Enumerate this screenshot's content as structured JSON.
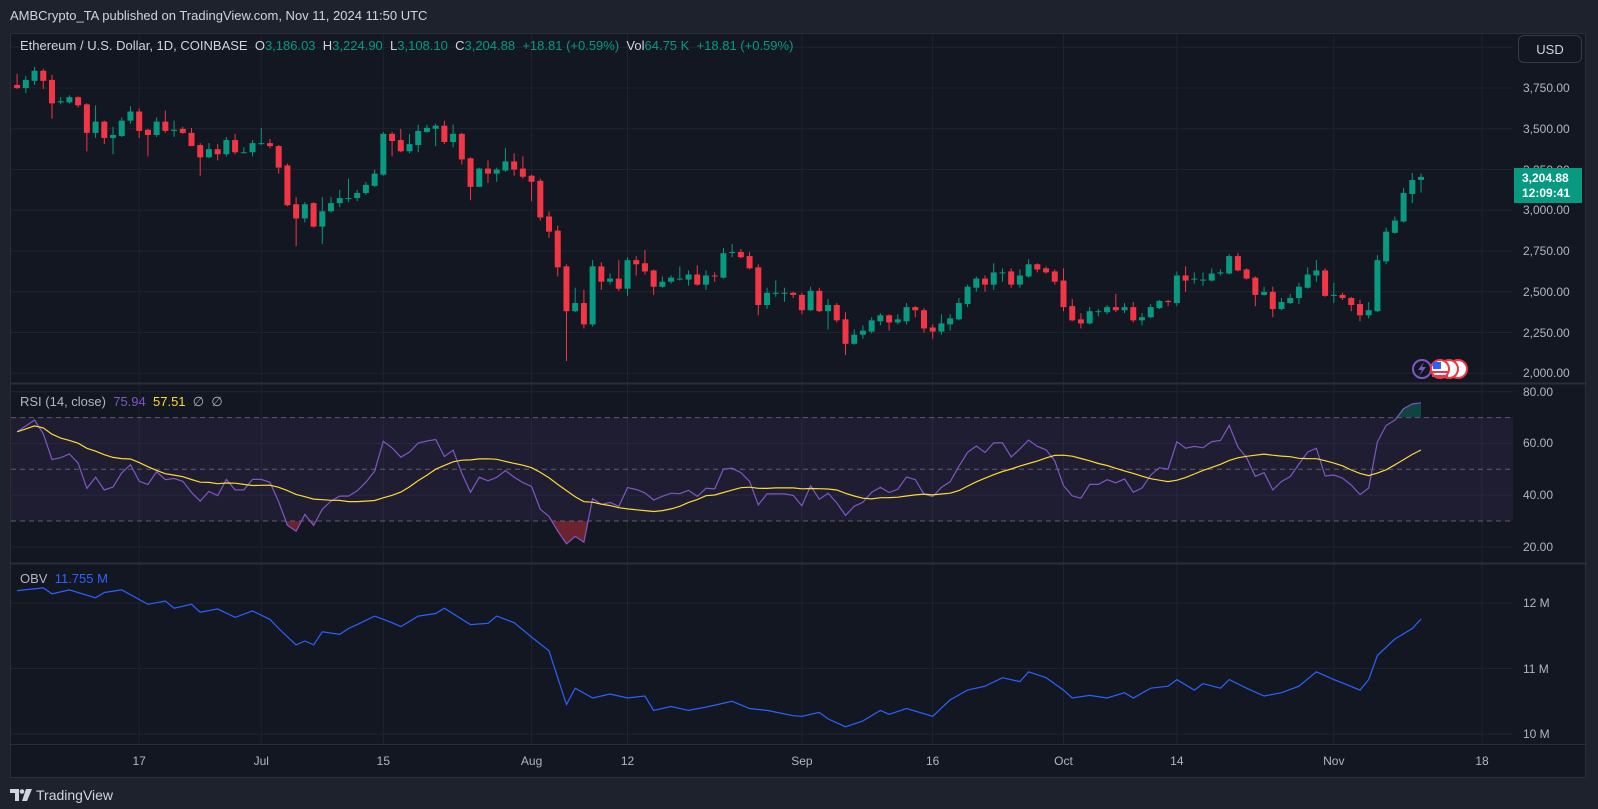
{
  "header": {
    "published": "AMBCrypto_TA published on TradingView.com, Nov 11, 2024 11:50 UTC"
  },
  "legend": {
    "symbol": "Ethereum / U.S. Dollar, 1D, COINBASE",
    "o_label": "O",
    "o": "3,186.03",
    "h_label": "H",
    "h": "3,224.90",
    "l_label": "L",
    "l": "3,108.10",
    "c_label": "C",
    "c": "3,204.88",
    "change": "+18.81 (+0.59%)",
    "vol_label": "Vol",
    "vol": "64.75 K",
    "vol_change": "+18.81 (+0.59%)"
  },
  "price_scale": {
    "currency": "USD",
    "labels": [
      "3,750.00",
      "3,500.00",
      "3,250.00",
      "3,000.00",
      "2,750.00",
      "2,500.00",
      "2,250.00",
      "2,000.00"
    ],
    "last_price": "3,204.88",
    "countdown": "12:09:41"
  },
  "rsi": {
    "title": "RSI (14, close)",
    "value": "75.94",
    "ma_value": "57.51",
    "extra1": "∅",
    "extra2": "∅",
    "labels": [
      "80.00",
      "60.00",
      "40.00",
      "20.00"
    ]
  },
  "obv": {
    "title": "OBV",
    "value": "11.755 M",
    "labels": [
      "12 M",
      "11 M",
      "10 M"
    ]
  },
  "footer": {
    "brand": "TradingView"
  },
  "colors": {
    "up": "#089981",
    "down": "#f23645",
    "rsi": "#7e57c2",
    "rsi_ma": "#fdd835",
    "obv": "#2962ff"
  },
  "chart_data": {
    "type": "candlestick",
    "title": "Ethereum / U.S. Dollar, 1D, COINBASE",
    "first_date": "2024-06-03",
    "last_date": "2024-11-11",
    "ylabel": "USD",
    "ylim": [
      2000,
      4000
    ],
    "x_ticks": [
      {
        "label": "17",
        "day": 14
      },
      {
        "label": "Jul",
        "day": 28
      },
      {
        "label": "15",
        "day": 42
      },
      {
        "label": "Aug",
        "day": 59
      },
      {
        "label": "12",
        "day": 70
      },
      {
        "label": "Sep",
        "day": 90
      },
      {
        "label": "16",
        "day": 105
      },
      {
        "label": "Oct",
        "day": 120
      },
      {
        "label": "14",
        "day": 133
      },
      {
        "label": "Nov",
        "day": 151
      },
      {
        "label": "18",
        "day": 168
      }
    ],
    "y_ticks": [
      2000,
      2250,
      2500,
      2750,
      3000,
      3250,
      3500,
      3750,
      4000
    ],
    "ohlc": [
      [
        3769,
        3838,
        3744,
        3750
      ],
      [
        3750,
        3825,
        3719,
        3800
      ],
      [
        3794,
        3881,
        3769,
        3856
      ],
      [
        3856,
        3869,
        3744,
        3794
      ],
      [
        3800,
        3831,
        3562,
        3656
      ],
      [
        3662,
        3694,
        3650,
        3669
      ],
      [
        3662,
        3706,
        3656,
        3694
      ],
      [
        3694,
        3700,
        3631,
        3644
      ],
      [
        3650,
        3656,
        3362,
        3475
      ],
      [
        3475,
        3644,
        3444,
        3544
      ],
      [
        3544,
        3550,
        3406,
        3444
      ],
      [
        3444,
        3512,
        3344,
        3462
      ],
      [
        3456,
        3569,
        3450,
        3550
      ],
      [
        3550,
        3637,
        3531,
        3606
      ],
      [
        3606,
        3625,
        3444,
        3487
      ],
      [
        3494,
        3500,
        3331,
        3462
      ],
      [
        3462,
        3569,
        3450,
        3544
      ],
      [
        3544,
        3612,
        3475,
        3487
      ],
      [
        3487,
        3550,
        3450,
        3494
      ],
      [
        3500,
        3512,
        3469,
        3475
      ],
      [
        3475,
        3506,
        3394,
        3394
      ],
      [
        3400,
        3412,
        3212,
        3325
      ],
      [
        3325,
        3412,
        3319,
        3375
      ],
      [
        3375,
        3406,
        3306,
        3344
      ],
      [
        3344,
        3450,
        3331,
        3431
      ],
      [
        3431,
        3469,
        3344,
        3356
      ],
      [
        3356,
        3387,
        3350,
        3356
      ],
      [
        3356,
        3431,
        3331,
        3412
      ],
      [
        3406,
        3506,
        3400,
        3412
      ],
      [
        3412,
        3437,
        3381,
        3394
      ],
      [
        3394,
        3400,
        3225,
        3262
      ],
      [
        3275,
        3287,
        3025,
        3031
      ],
      [
        3037,
        3081,
        2781,
        2950
      ],
      [
        2950,
        3050,
        2925,
        3037
      ],
      [
        3044,
        3050,
        2894,
        2900
      ],
      [
        2900,
        3081,
        2794,
        2994
      ],
      [
        2994,
        3081,
        2987,
        3044
      ],
      [
        3044,
        3125,
        3019,
        3075
      ],
      [
        3075,
        3194,
        3050,
        3075
      ],
      [
        3075,
        3125,
        3056,
        3106
      ],
      [
        3106,
        3175,
        3094,
        3156
      ],
      [
        3150,
        3250,
        3144,
        3225
      ],
      [
        3219,
        3481,
        3212,
        3469
      ],
      [
        3469,
        3481,
        3331,
        3425
      ],
      [
        3431,
        3500,
        3356,
        3362
      ],
      [
        3362,
        3469,
        3350,
        3406
      ],
      [
        3400,
        3525,
        3356,
        3487
      ],
      [
        3481,
        3525,
        3475,
        3506
      ],
      [
        3500,
        3531,
        3394,
        3519
      ],
      [
        3519,
        3550,
        3406,
        3419
      ],
      [
        3419,
        3525,
        3387,
        3469
      ],
      [
        3469,
        3475,
        3281,
        3312
      ],
      [
        3319,
        3325,
        3062,
        3144
      ],
      [
        3144,
        3262,
        3144,
        3256
      ],
      [
        3256,
        3306,
        3169,
        3225
      ],
      [
        3225,
        3262,
        3175,
        3250
      ],
      [
        3244,
        3381,
        3237,
        3300
      ],
      [
        3300,
        3350,
        3212,
        3250
      ],
      [
        3256,
        3331,
        3194,
        3206
      ],
      [
        3212,
        3219,
        3056,
        3175
      ],
      [
        3181,
        3194,
        2937,
        2956
      ],
      [
        2962,
        2994,
        2831,
        2869
      ],
      [
        2875,
        2906,
        2594,
        2650
      ],
      [
        2656,
        2669,
        2075,
        2381
      ],
      [
        2381,
        2525,
        2375,
        2431
      ],
      [
        2431,
        2512,
        2275,
        2300
      ],
      [
        2300,
        2694,
        2287,
        2656
      ],
      [
        2656,
        2681,
        2512,
        2562
      ],
      [
        2562,
        2612,
        2544,
        2581
      ],
      [
        2581,
        2694,
        2506,
        2519
      ],
      [
        2519,
        2712,
        2475,
        2694
      ],
      [
        2694,
        2719,
        2600,
        2669
      ],
      [
        2675,
        2756,
        2606,
        2625
      ],
      [
        2631,
        2637,
        2481,
        2531
      ],
      [
        2531,
        2594,
        2525,
        2562
      ],
      [
        2562,
        2600,
        2550,
        2587
      ],
      [
        2581,
        2656,
        2569,
        2581
      ],
      [
        2575,
        2631,
        2537,
        2606
      ],
      [
        2606,
        2662,
        2537,
        2544
      ],
      [
        2544,
        2631,
        2512,
        2600
      ],
      [
        2600,
        2619,
        2562,
        2594
      ],
      [
        2587,
        2769,
        2581,
        2737
      ],
      [
        2744,
        2794,
        2712,
        2744
      ],
      [
        2744,
        2762,
        2706,
        2712
      ],
      [
        2719,
        2744,
        2637,
        2644
      ],
      [
        2650,
        2669,
        2356,
        2419
      ],
      [
        2419,
        2525,
        2394,
        2494
      ],
      [
        2494,
        2569,
        2469,
        2494
      ],
      [
        2494,
        2525,
        2438,
        2494
      ],
      [
        2494,
        2500,
        2462,
        2481
      ],
      [
        2481,
        2494,
        2362,
        2387
      ],
      [
        2387,
        2531,
        2381,
        2506
      ],
      [
        2506,
        2525,
        2375,
        2381
      ],
      [
        2381,
        2456,
        2269,
        2419
      ],
      [
        2419,
        2431,
        2312,
        2325
      ],
      [
        2331,
        2375,
        2112,
        2181
      ],
      [
        2181,
        2269,
        2175,
        2237
      ],
      [
        2237,
        2294,
        2212,
        2262
      ],
      [
        2256,
        2344,
        2244,
        2325
      ],
      [
        2319,
        2369,
        2294,
        2356
      ],
      [
        2356,
        2362,
        2262,
        2312
      ],
      [
        2312,
        2362,
        2300,
        2331
      ],
      [
        2319,
        2431,
        2300,
        2406
      ],
      [
        2406,
        2412,
        2344,
        2387
      ],
      [
        2387,
        2400,
        2250,
        2275
      ],
      [
        2281,
        2300,
        2212,
        2256
      ],
      [
        2256,
        2362,
        2237,
        2306
      ],
      [
        2300,
        2362,
        2262,
        2337
      ],
      [
        2331,
        2462,
        2325,
        2431
      ],
      [
        2425,
        2544,
        2406,
        2531
      ],
      [
        2525,
        2594,
        2500,
        2581
      ],
      [
        2581,
        2600,
        2500,
        2544
      ],
      [
        2544,
        2675,
        2512,
        2619
      ],
      [
        2619,
        2644,
        2562,
        2619
      ],
      [
        2625,
        2644,
        2525,
        2544
      ],
      [
        2544,
        2637,
        2525,
        2600
      ],
      [
        2594,
        2700,
        2587,
        2669
      ],
      [
        2669,
        2675,
        2619,
        2637
      ],
      [
        2644,
        2656,
        2612,
        2619
      ],
      [
        2625,
        2637,
        2544,
        2562
      ],
      [
        2569,
        2644,
        2381,
        2406
      ],
      [
        2412,
        2456,
        2319,
        2325
      ],
      [
        2331,
        2369,
        2275,
        2306
      ],
      [
        2306,
        2406,
        2300,
        2381
      ],
      [
        2381,
        2394,
        2350,
        2381
      ],
      [
        2375,
        2419,
        2362,
        2406
      ],
      [
        2406,
        2487,
        2375,
        2387
      ],
      [
        2387,
        2431,
        2369,
        2406
      ],
      [
        2406,
        2437,
        2312,
        2325
      ],
      [
        2325,
        2369,
        2294,
        2344
      ],
      [
        2344,
        2425,
        2337,
        2406
      ],
      [
        2400,
        2450,
        2394,
        2444
      ],
      [
        2444,
        2450,
        2412,
        2437
      ],
      [
        2431,
        2625,
        2412,
        2600
      ],
      [
        2600,
        2656,
        2500,
        2569
      ],
      [
        2581,
        2619,
        2550,
        2581
      ],
      [
        2575,
        2619,
        2537,
        2575
      ],
      [
        2569,
        2644,
        2562,
        2612
      ],
      [
        2612,
        2637,
        2600,
        2619
      ],
      [
        2612,
        2731,
        2606,
        2719
      ],
      [
        2719,
        2737,
        2625,
        2631
      ],
      [
        2637,
        2644,
        2575,
        2581
      ],
      [
        2587,
        2594,
        2412,
        2481
      ],
      [
        2481,
        2531,
        2475,
        2500
      ],
      [
        2500,
        2531,
        2344,
        2394
      ],
      [
        2394,
        2462,
        2387,
        2437
      ],
      [
        2431,
        2487,
        2425,
        2462
      ],
      [
        2462,
        2556,
        2425,
        2531
      ],
      [
        2525,
        2650,
        2519,
        2606
      ],
      [
        2600,
        2694,
        2562,
        2631
      ],
      [
        2631,
        2644,
        2469,
        2475
      ],
      [
        2481,
        2556,
        2431,
        2481
      ],
      [
        2481,
        2494,
        2450,
        2462
      ],
      [
        2462,
        2469,
        2381,
        2419
      ],
      [
        2425,
        2450,
        2319,
        2356
      ],
      [
        2356,
        2437,
        2337,
        2387
      ],
      [
        2381,
        2725,
        2375,
        2694
      ],
      [
        2687,
        2894,
        2669,
        2869
      ],
      [
        2862,
        2962,
        2856,
        2937
      ],
      [
        2931,
        3137,
        2925,
        3106
      ],
      [
        3100,
        3229,
        3044,
        3186
      ],
      [
        3186.03,
        3224.9,
        3108.1,
        3204.88
      ]
    ],
    "rsi": {
      "period": 14,
      "ma_period": 14,
      "ylim": [
        20,
        80
      ],
      "bands": [
        30,
        50,
        70
      ]
    },
    "obv_millions": [
      [
        0,
        12.19
      ],
      [
        3,
        12.23
      ],
      [
        4,
        12.14
      ],
      [
        6,
        12.2
      ],
      [
        9,
        12.08
      ],
      [
        10,
        12.16
      ],
      [
        12,
        12.2
      ],
      [
        15,
        11.98
      ],
      [
        17,
        12.03
      ],
      [
        18,
        11.92
      ],
      [
        20,
        11.98
      ],
      [
        21,
        11.86
      ],
      [
        23,
        11.91
      ],
      [
        25,
        11.78
      ],
      [
        27,
        11.88
      ],
      [
        29,
        11.75
      ],
      [
        30,
        11.61
      ],
      [
        32,
        11.36
      ],
      [
        33,
        11.42
      ],
      [
        34,
        11.36
      ],
      [
        35,
        11.56
      ],
      [
        37,
        11.52
      ],
      [
        38,
        11.61
      ],
      [
        39,
        11.67
      ],
      [
        41,
        11.8
      ],
      [
        43,
        11.7
      ],
      [
        44,
        11.64
      ],
      [
        46,
        11.8
      ],
      [
        48,
        11.84
      ],
      [
        49,
        11.92
      ],
      [
        52,
        11.67
      ],
      [
        54,
        11.69
      ],
      [
        55,
        11.8
      ],
      [
        57,
        11.7
      ],
      [
        59,
        11.48
      ],
      [
        61,
        11.27
      ],
      [
        62,
        10.86
      ],
      [
        63,
        10.45
      ],
      [
        64,
        10.7
      ],
      [
        66,
        10.55
      ],
      [
        68,
        10.61
      ],
      [
        70,
        10.55
      ],
      [
        72,
        10.58
      ],
      [
        73,
        10.36
      ],
      [
        75,
        10.42
      ],
      [
        77,
        10.36
      ],
      [
        79,
        10.41
      ],
      [
        82,
        10.5
      ],
      [
        84,
        10.39
      ],
      [
        86,
        10.36
      ],
      [
        89,
        10.28
      ],
      [
        90,
        10.27
      ],
      [
        92,
        10.33
      ],
      [
        93,
        10.23
      ],
      [
        95,
        10.11
      ],
      [
        97,
        10.2
      ],
      [
        99,
        10.36
      ],
      [
        100,
        10.3
      ],
      [
        102,
        10.39
      ],
      [
        105,
        10.27
      ],
      [
        107,
        10.52
      ],
      [
        109,
        10.67
      ],
      [
        111,
        10.73
      ],
      [
        113,
        10.86
      ],
      [
        115,
        10.8
      ],
      [
        116,
        10.95
      ],
      [
        118,
        10.86
      ],
      [
        120,
        10.67
      ],
      [
        121,
        10.55
      ],
      [
        123,
        10.59
      ],
      [
        125,
        10.55
      ],
      [
        127,
        10.63
      ],
      [
        128,
        10.55
      ],
      [
        130,
        10.7
      ],
      [
        132,
        10.73
      ],
      [
        133,
        10.83
      ],
      [
        135,
        10.67
      ],
      [
        136,
        10.77
      ],
      [
        138,
        10.7
      ],
      [
        139,
        10.83
      ],
      [
        141,
        10.7
      ],
      [
        143,
        10.58
      ],
      [
        145,
        10.63
      ],
      [
        147,
        10.73
      ],
      [
        149,
        10.95
      ],
      [
        151,
        10.83
      ],
      [
        152,
        10.78
      ],
      [
        154,
        10.67
      ],
      [
        155,
        10.83
      ],
      [
        156,
        11.2
      ],
      [
        158,
        11.45
      ],
      [
        160,
        11.61
      ],
      [
        161,
        11.755
      ]
    ],
    "obv_ylim": [
      10,
      12
    ]
  }
}
